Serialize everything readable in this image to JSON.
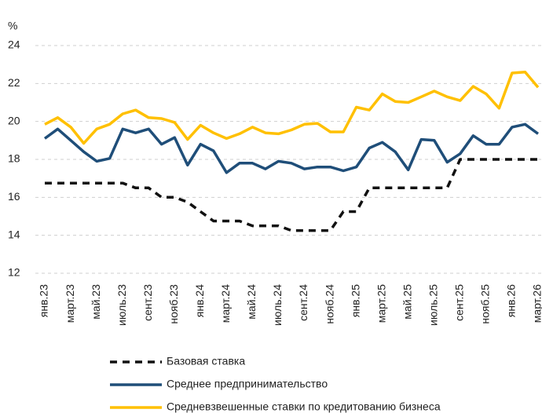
{
  "chart_data": {
    "type": "line",
    "y_unit": "%",
    "categories": [
      "янв.23",
      null,
      "март.23",
      null,
      "май.23",
      null,
      "июль.23",
      null,
      "сент.23",
      null,
      "нояб.23",
      null,
      "янв.24",
      null,
      "март.24",
      null,
      "май.24",
      null,
      "июль.24",
      null,
      "сент.24",
      null,
      "нояб.24",
      null,
      "янв.25",
      null,
      "март.25",
      null,
      "май.25",
      null,
      "июль.25",
      null,
      "сент.25",
      null,
      "нояб.25",
      null,
      "янв.26",
      null,
      "март.26"
    ],
    "series": [
      {
        "name": "Базовая ставка",
        "color": "#111111",
        "style": "dashed",
        "values": [
          16.75,
          16.75,
          16.75,
          16.75,
          16.75,
          16.75,
          16.75,
          16.5,
          16.5,
          16,
          16,
          15.75,
          15.25,
          14.75,
          14.75,
          14.75,
          14.5,
          14.5,
          14.5,
          14.25,
          14.25,
          14.25,
          14.25,
          15.25,
          15.25,
          16.5,
          16.5,
          16.5,
          16.5,
          16.5,
          16.5,
          16.5,
          18,
          18,
          18,
          18,
          18,
          18,
          18
        ]
      },
      {
        "name": "Среднее предпринимательство",
        "color": "#1f4e79",
        "style": "solid",
        "values": [
          19.1,
          19.6,
          19.0,
          18.4,
          17.9,
          18.05,
          19.6,
          19.4,
          19.6,
          18.8,
          19.15,
          17.7,
          18.8,
          18.45,
          17.3,
          17.8,
          17.8,
          17.5,
          17.9,
          17.8,
          17.5,
          17.6,
          17.6,
          17.4,
          17.6,
          18.6,
          18.9,
          18.4,
          17.45,
          19.05,
          19.0,
          17.85,
          18.3,
          19.25,
          18.8,
          18.8,
          19.7,
          19.85,
          19.35
        ]
      },
      {
        "name": "Средневзвешенные ставки по кредитованию бизнеса",
        "color": "#ffc000",
        "style": "solid",
        "values": [
          19.85,
          20.2,
          19.7,
          18.85,
          19.6,
          19.85,
          20.4,
          20.6,
          20.2,
          20.15,
          19.95,
          19.05,
          19.8,
          19.4,
          19.1,
          19.35,
          19.7,
          19.4,
          19.35,
          19.55,
          19.85,
          19.9,
          19.45,
          19.45,
          20.75,
          20.6,
          21.45,
          21.05,
          21.0,
          21.3,
          21.6,
          21.3,
          21.1,
          21.85,
          21.45,
          20.7,
          22.55,
          22.6,
          21.8
        ]
      }
    ],
    "ylim": [
      12,
      24
    ],
    "yticks": [
      12,
      14,
      16,
      18,
      20,
      22,
      24
    ],
    "grid": true,
    "legend": "bottom"
  }
}
